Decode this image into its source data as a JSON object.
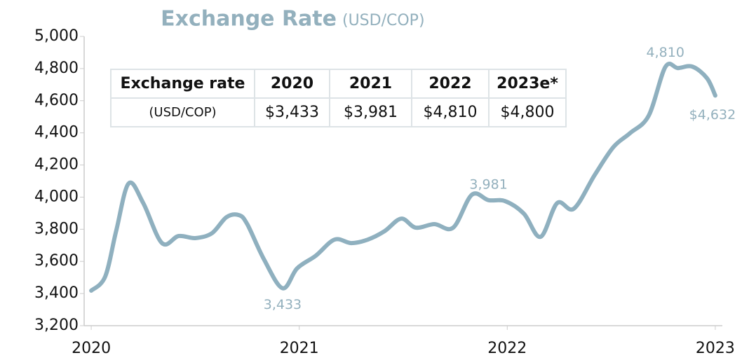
{
  "chart_data": {
    "type": "line",
    "title": "Exchange Rate",
    "subtitle": "(USD/COP)",
    "x": [
      2020.0,
      2020.067,
      2020.12,
      2020.18,
      2020.25,
      2020.34,
      2020.42,
      2020.5,
      2020.58,
      2020.65,
      2020.71,
      2020.75,
      2020.83,
      2020.92,
      2020.99,
      2021.08,
      2021.17,
      2021.25,
      2021.33,
      2021.41,
      2021.49,
      2021.56,
      2021.65,
      2021.74,
      2021.83,
      2021.91,
      2021.99,
      2022.08,
      2022.16,
      2022.24,
      2022.32,
      2022.42,
      2022.51,
      2022.59,
      2022.68,
      2022.76,
      2022.82,
      2022.89,
      2022.96,
      2023.0
    ],
    "series": [
      {
        "name": "Exchange rate",
        "color": "#8fb0bf",
        "values": [
          3418,
          3505,
          3790,
          4085,
          3963,
          3714,
          3758,
          3745,
          3775,
          3875,
          3888,
          3832,
          3614,
          3433,
          3557,
          3636,
          3736,
          3714,
          3736,
          3788,
          3866,
          3810,
          3832,
          3810,
          4015,
          3981,
          3975,
          3897,
          3753,
          3963,
          3928,
          4137,
          4311,
          4398,
          4507,
          4810,
          4803,
          4812,
          4740,
          4632
        ],
        "value_labels": [
          null,
          null,
          null,
          null,
          null,
          null,
          null,
          null,
          null,
          null,
          null,
          null,
          null,
          "3,433",
          null,
          null,
          null,
          null,
          null,
          null,
          null,
          null,
          null,
          null,
          null,
          "3,981",
          null,
          null,
          null,
          null,
          null,
          null,
          null,
          null,
          null,
          "4,810",
          null,
          null,
          null,
          "$4,632"
        ]
      }
    ],
    "xlim": [
      2019.966,
      2023.034
    ],
    "xticks": [
      2020,
      2021,
      2022,
      2023
    ],
    "ylim": [
      3200,
      5000
    ],
    "yticks": [
      {
        "value": 3200,
        "label": "3,200"
      },
      {
        "value": 3400,
        "label": "3,400"
      },
      {
        "value": 3600,
        "label": "3,600"
      },
      {
        "value": 3800,
        "label": "3,800"
      },
      {
        "value": 4000,
        "label": "4,000"
      },
      {
        "value": 4200,
        "label": "4,200"
      },
      {
        "value": 4400,
        "label": "4,400"
      },
      {
        "value": 4600,
        "label": "4,600"
      },
      {
        "value": 4800,
        "label": "4,800"
      },
      {
        "value": 5000,
        "label": "5,000"
      }
    ]
  },
  "table": {
    "header": [
      "Exchange rate",
      "2020",
      "2021",
      "2022",
      "2023e*"
    ],
    "rows": [
      [
        "(USD/COP)",
        "$3,433",
        "$3,981",
        "$4,810",
        "$4,800"
      ]
    ]
  }
}
